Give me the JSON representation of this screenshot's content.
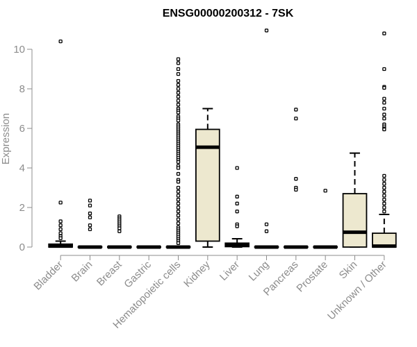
{
  "chart_data": {
    "type": "box",
    "title": "ENSG00000200312 - 7SK",
    "ylabel": "Expression",
    "xlabel": "",
    "ylim": [
      0,
      10
    ],
    "yticks": [
      0,
      2,
      4,
      6,
      8,
      10
    ],
    "box_fill": "#ede8cf",
    "categories": [
      "Bladder",
      "Brain",
      "Breast",
      "Gastric",
      "Hematopoietic cells",
      "Kidney",
      "Liver",
      "Lung",
      "Pancreas",
      "Prostate",
      "Skin",
      "Unknown / Other"
    ],
    "boxes": [
      {
        "q1": 0.0,
        "median": 0.05,
        "q3": 0.15,
        "whisker_low": 0.0,
        "whisker_high": 0.3,
        "outliers": [
          10.4,
          2.25,
          1.3,
          1.1,
          0.9,
          0.7,
          0.55,
          0.45
        ]
      },
      {
        "q1": 0.0,
        "median": 0.0,
        "q3": 0.02,
        "whisker_low": 0.0,
        "whisker_high": 0.04,
        "outliers": [
          2.35,
          2.1,
          1.7,
          1.5,
          1.1,
          0.9
        ]
      },
      {
        "q1": 0.0,
        "median": 0.0,
        "q3": 0.02,
        "whisker_low": 0.0,
        "whisker_high": 0.04,
        "outliers": [
          1.55,
          1.45,
          1.35,
          1.25,
          1.15,
          1.05,
          0.95,
          0.8
        ]
      },
      {
        "q1": 0.0,
        "median": 0.0,
        "q3": 0.02,
        "whisker_low": 0.0,
        "whisker_high": 0.04,
        "outliers": []
      },
      {
        "q1": 0.0,
        "median": 0.0,
        "q3": 0.02,
        "whisker_low": 0.0,
        "whisker_high": 0.04,
        "outliers": [
          9.5,
          9.3,
          9.0,
          8.75,
          8.4,
          8.2,
          8.0,
          7.8,
          7.6,
          7.4,
          7.2,
          7.0,
          6.9,
          6.8,
          6.6,
          6.5,
          6.4,
          6.2,
          6.1,
          6.0,
          5.9,
          5.8,
          5.7,
          5.6,
          5.5,
          5.4,
          5.3,
          5.2,
          5.1,
          5.0,
          4.9,
          4.8,
          4.7,
          4.6,
          4.5,
          4.4,
          4.3,
          4.1,
          4.0,
          3.7,
          3.4,
          3.3,
          3.0,
          2.8,
          2.6,
          2.4,
          2.2,
          2.0,
          1.8,
          1.6,
          1.4,
          1.2,
          1.0,
          0.9,
          0.8,
          0.7,
          0.6,
          0.5,
          0.4,
          0.3,
          0.2
        ]
      },
      {
        "q1": 0.3,
        "median": 5.05,
        "q3": 5.95,
        "whisker_low": 0.0,
        "whisker_high": 7.0,
        "outliers": []
      },
      {
        "q1": 0.02,
        "median": 0.12,
        "q3": 0.2,
        "whisker_low": 0.0,
        "whisker_high": 0.42,
        "outliers": [
          4.0,
          2.55,
          2.2,
          1.8,
          1.15,
          1.05
        ]
      },
      {
        "q1": 0.0,
        "median": 0.0,
        "q3": 0.02,
        "whisker_low": 0.0,
        "whisker_high": 0.04,
        "outliers": [
          10.95,
          1.15,
          0.8
        ]
      },
      {
        "q1": 0.0,
        "median": 0.0,
        "q3": 0.02,
        "whisker_low": 0.0,
        "whisker_high": 0.04,
        "outliers": [
          6.95,
          6.5,
          3.45,
          3.0,
          2.9
        ]
      },
      {
        "q1": 0.0,
        "median": 0.0,
        "q3": 0.02,
        "whisker_low": 0.0,
        "whisker_high": 0.04,
        "outliers": [
          2.85
        ]
      },
      {
        "q1": 0.0,
        "median": 0.75,
        "q3": 2.7,
        "whisker_low": 0.0,
        "whisker_high": 4.75,
        "outliers": []
      },
      {
        "q1": 0.0,
        "median": 0.05,
        "q3": 0.7,
        "whisker_low": 0.0,
        "whisker_high": 1.65,
        "outliers": [
          10.8,
          9.0,
          8.1,
          8.05,
          7.5,
          7.3,
          7.0,
          6.7,
          6.5,
          6.2,
          6.1,
          6.0,
          5.95,
          3.6,
          3.4,
          3.2,
          3.0,
          2.8,
          2.6,
          2.4,
          2.2,
          2.0,
          1.8
        ]
      }
    ]
  }
}
